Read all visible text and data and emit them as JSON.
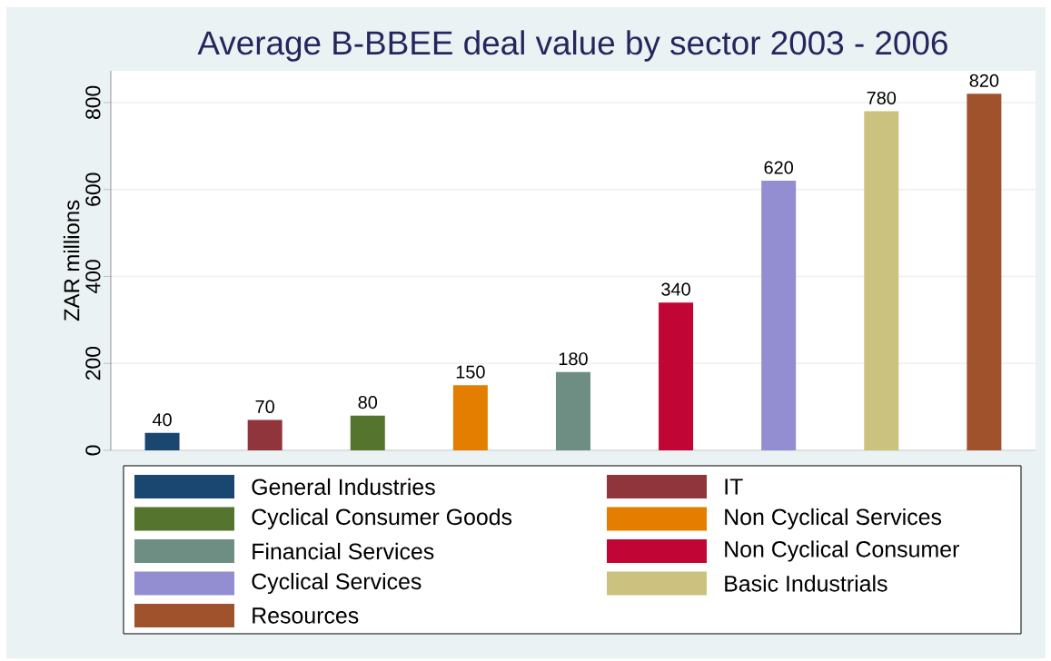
{
  "chart_data": {
    "type": "bar",
    "title": "Average B-BBEE deal value by sector 2003 - 2006",
    "ylabel": "ZAR millions",
    "categories": [
      null
    ],
    "series": [
      {
        "name": "General Industries",
        "color": "#1a476f",
        "values": [
          40
        ]
      },
      {
        "name": "IT",
        "color": "#90353b",
        "values": [
          70
        ]
      },
      {
        "name": "Cyclical Consumer Goods",
        "color": "#55752f",
        "values": [
          80
        ]
      },
      {
        "name": "Non Cyclical Services",
        "color": "#e37e00",
        "values": [
          150
        ]
      },
      {
        "name": "Financial Services",
        "color": "#6e8e84",
        "values": [
          180
        ]
      },
      {
        "name": "Non Cyclical Consumer",
        "color": "#c10534",
        "values": [
          340
        ]
      },
      {
        "name": "Cyclical Services",
        "color": "#938dd2",
        "values": [
          620
        ]
      },
      {
        "name": "Basic Industrials",
        "color": "#cac27e",
        "values": [
          780
        ]
      },
      {
        "name": "Resources",
        "color": "#a0522d",
        "values": [
          820
        ]
      }
    ],
    "ylim": [
      0,
      873
    ],
    "yticks": [
      0,
      200,
      400,
      600,
      800
    ],
    "grid": "y",
    "legend": "bottom",
    "data_labels": true
  }
}
